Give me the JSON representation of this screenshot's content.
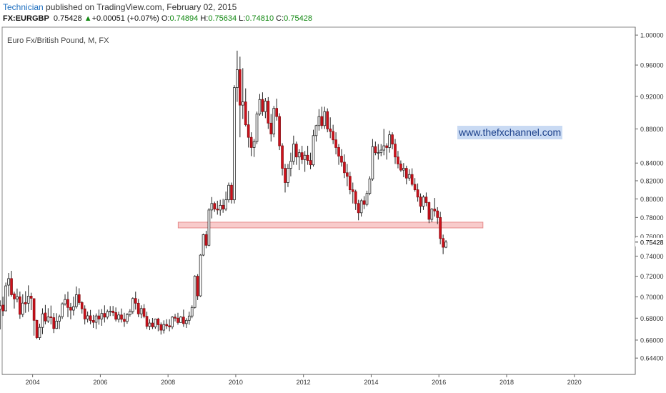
{
  "header": {
    "author": "Technician",
    "published_text": "published on TradingView.com, February 02, 2015",
    "symbol": "FX:EURGBP",
    "last": "0.75428",
    "change_arrow": "▲",
    "change": "+0.00051 (+0.07%)",
    "o_label": "O:",
    "o_value": "0.74894",
    "h_label": "H:",
    "h_value": "0.75634",
    "l_label": "L:",
    "l_value": "0.74810",
    "c_label": "C:",
    "c_value": "0.75428"
  },
  "watermark": "www.thefxchannel.com",
  "colors": {
    "up": "#ffffff",
    "down": "#d0111b",
    "wick": "#222222",
    "zone": "#f5b5b5",
    "watermark_bg": "#c9daf3"
  },
  "chart_data": {
    "type": "candlestick",
    "title": "Euro Fx/British Pound, M, FX",
    "scale": "log",
    "ylim": [
      0.636,
      1.005
    ],
    "xlim": [
      2003.1,
      2021.8
    ],
    "y_ticks": [
      1.0,
      0.96,
      0.92,
      0.88,
      0.84,
      0.82,
      0.8,
      0.78,
      0.76,
      0.74,
      0.72,
      0.7,
      0.68,
      0.66,
      0.644
    ],
    "y_tick_labels": [
      "1.00000",
      "0.96000",
      "0.92000",
      "0.88000",
      "0.84000",
      "0.82000",
      "0.80000",
      "0.78000",
      "0.76000",
      "0.74000",
      "0.72000",
      "0.70000",
      "0.68000",
      "0.66000",
      "0.64400"
    ],
    "x_ticks": [
      2004,
      2006,
      2008,
      2010,
      2012,
      2014,
      2016,
      2018,
      2020
    ],
    "x_tick_labels": [
      "2004",
      "2006",
      "2008",
      "2010",
      "2012",
      "2014",
      "2016",
      "2018",
      "2020"
    ],
    "last_price": 0.75428,
    "last_price_label": "0.75428",
    "support_zone": {
      "low": 0.769,
      "high": 0.775,
      "x_start": 2008.3,
      "x_end": 2017.3
    },
    "candles": [
      [
        0.6883,
        0.6967,
        0.6697,
        0.6916
      ],
      [
        0.6922,
        0.7002,
        0.6821,
        0.6868
      ],
      [
        0.6868,
        0.7138,
        0.6866,
        0.7106
      ],
      [
        0.7113,
        0.7232,
        0.7005,
        0.7177
      ],
      [
        0.7177,
        0.7253,
        0.7003,
        0.7021
      ],
      [
        0.7029,
        0.705,
        0.689,
        0.6981
      ],
      [
        0.6981,
        0.708,
        0.6948,
        0.7001
      ],
      [
        0.7001,
        0.7051,
        0.6794,
        0.6836
      ],
      [
        0.6836,
        0.7025,
        0.681,
        0.6941
      ],
      [
        0.6947,
        0.7055,
        0.685,
        0.6933
      ],
      [
        0.694,
        0.7111,
        0.6859,
        0.7007
      ],
      [
        0.7007,
        0.704,
        0.6875,
        0.6987
      ],
      [
        0.6983,
        0.6987,
        0.664,
        0.678
      ],
      [
        0.678,
        0.6785,
        0.661,
        0.6622
      ],
      [
        0.6622,
        0.6749,
        0.66,
        0.6715
      ],
      [
        0.6715,
        0.6892,
        0.6654,
        0.684
      ],
      [
        0.6848,
        0.6924,
        0.6743,
        0.6774
      ],
      [
        0.6774,
        0.6893,
        0.6756,
        0.6812
      ],
      [
        0.6812,
        0.6918,
        0.6743,
        0.6805
      ],
      [
        0.6805,
        0.6848,
        0.6663,
        0.6705
      ],
      [
        0.6705,
        0.6846,
        0.67,
        0.6773
      ],
      [
        0.6773,
        0.6832,
        0.67,
        0.6814
      ],
      [
        0.6814,
        0.6947,
        0.6793,
        0.6934
      ],
      [
        0.6934,
        0.7025,
        0.6918,
        0.6975
      ],
      [
        0.6975,
        0.705,
        0.681,
        0.69
      ],
      [
        0.69,
        0.6943,
        0.679,
        0.6875
      ],
      [
        0.6875,
        0.7002,
        0.6825,
        0.6908
      ],
      [
        0.6908,
        0.71,
        0.689,
        0.7021
      ],
      [
        0.7021,
        0.7083,
        0.6924,
        0.6946
      ],
      [
        0.6946,
        0.696,
        0.6843,
        0.6887
      ],
      [
        0.6887,
        0.692,
        0.6742,
        0.6793
      ],
      [
        0.6793,
        0.6862,
        0.676,
        0.6822
      ],
      [
        0.6822,
        0.6877,
        0.6744,
        0.6779
      ],
      [
        0.6779,
        0.683,
        0.671,
        0.6762
      ],
      [
        0.6762,
        0.6844,
        0.67,
        0.6821
      ],
      [
        0.6821,
        0.688,
        0.674,
        0.6792
      ],
      [
        0.6792,
        0.6885,
        0.673,
        0.6844
      ],
      [
        0.6844,
        0.692,
        0.676,
        0.681
      ],
      [
        0.681,
        0.688,
        0.679,
        0.6861
      ],
      [
        0.6861,
        0.6913,
        0.682,
        0.6866
      ],
      [
        0.6866,
        0.6914,
        0.682,
        0.6852
      ],
      [
        0.6852,
        0.69,
        0.677,
        0.679
      ],
      [
        0.679,
        0.686,
        0.676,
        0.683
      ],
      [
        0.683,
        0.689,
        0.676,
        0.679
      ],
      [
        0.679,
        0.685,
        0.672,
        0.677
      ],
      [
        0.677,
        0.6848,
        0.6748,
        0.6833
      ],
      [
        0.6833,
        0.6884,
        0.6814,
        0.6862
      ],
      [
        0.6862,
        0.6996,
        0.684,
        0.6985
      ],
      [
        0.6985,
        0.705,
        0.688,
        0.694
      ],
      [
        0.694,
        0.698,
        0.681,
        0.684
      ],
      [
        0.684,
        0.692,
        0.68,
        0.689
      ],
      [
        0.689,
        0.6931,
        0.68,
        0.6817
      ],
      [
        0.6817,
        0.686,
        0.67,
        0.6725
      ],
      [
        0.6725,
        0.679,
        0.669,
        0.6755
      ],
      [
        0.6755,
        0.6802,
        0.67,
        0.672
      ],
      [
        0.672,
        0.6796,
        0.6703,
        0.6792
      ],
      [
        0.6792,
        0.6803,
        0.668,
        0.674
      ],
      [
        0.674,
        0.676,
        0.665,
        0.669
      ],
      [
        0.669,
        0.678,
        0.666,
        0.6742
      ],
      [
        0.6742,
        0.679,
        0.67,
        0.673
      ],
      [
        0.673,
        0.679,
        0.668,
        0.672
      ],
      [
        0.672,
        0.682,
        0.67,
        0.681
      ],
      [
        0.681,
        0.684,
        0.677,
        0.68
      ],
      [
        0.68,
        0.685,
        0.674,
        0.676
      ],
      [
        0.676,
        0.682,
        0.676,
        0.681
      ],
      [
        0.681,
        0.688,
        0.672,
        0.675
      ],
      [
        0.675,
        0.68,
        0.671,
        0.678
      ],
      [
        0.678,
        0.686,
        0.674,
        0.682
      ],
      [
        0.682,
        0.692,
        0.68,
        0.69
      ],
      [
        0.69,
        0.721,
        0.689,
        0.72
      ],
      [
        0.72,
        0.722,
        0.697,
        0.701
      ],
      [
        0.701,
        0.742,
        0.7,
        0.741
      ],
      [
        0.741,
        0.763,
        0.74,
        0.762
      ],
      [
        0.762,
        0.766,
        0.748,
        0.751
      ],
      [
        0.751,
        0.79,
        0.75,
        0.788
      ],
      [
        0.788,
        0.802,
        0.779,
        0.795
      ],
      [
        0.795,
        0.797,
        0.786,
        0.789
      ],
      [
        0.789,
        0.798,
        0.783,
        0.788
      ],
      [
        0.788,
        0.799,
        0.782,
        0.793
      ],
      [
        0.793,
        0.8,
        0.785,
        0.789
      ],
      [
        0.789,
        0.808,
        0.787,
        0.799
      ],
      [
        0.799,
        0.818,
        0.796,
        0.815
      ],
      [
        0.815,
        0.818,
        0.795,
        0.799
      ],
      [
        0.799,
        0.934,
        0.795,
        0.931
      ],
      [
        0.931,
        0.979,
        0.913,
        0.954
      ],
      [
        0.954,
        0.971,
        0.87,
        0.909
      ],
      [
        0.909,
        0.956,
        0.892,
        0.913
      ],
      [
        0.913,
        0.93,
        0.883,
        0.885
      ],
      [
        0.885,
        0.902,
        0.858,
        0.87
      ],
      [
        0.87,
        0.876,
        0.848,
        0.858
      ],
      [
        0.858,
        0.868,
        0.847,
        0.865
      ],
      [
        0.865,
        0.901,
        0.862,
        0.898
      ],
      [
        0.898,
        0.923,
        0.896,
        0.916
      ],
      [
        0.916,
        0.925,
        0.896,
        0.901
      ],
      [
        0.901,
        0.918,
        0.893,
        0.914
      ],
      [
        0.914,
        0.919,
        0.88,
        0.887
      ],
      [
        0.887,
        0.898,
        0.865,
        0.874
      ],
      [
        0.874,
        0.908,
        0.87,
        0.905
      ],
      [
        0.905,
        0.917,
        0.89,
        0.895
      ],
      [
        0.895,
        0.899,
        0.855,
        0.86
      ],
      [
        0.86,
        0.863,
        0.826,
        0.834
      ],
      [
        0.834,
        0.839,
        0.807,
        0.818
      ],
      [
        0.818,
        0.839,
        0.813,
        0.834
      ],
      [
        0.834,
        0.852,
        0.825,
        0.842
      ],
      [
        0.842,
        0.872,
        0.838,
        0.862
      ],
      [
        0.862,
        0.865,
        0.838,
        0.847
      ],
      [
        0.847,
        0.856,
        0.832,
        0.852
      ],
      [
        0.852,
        0.86,
        0.839,
        0.844
      ],
      [
        0.844,
        0.854,
        0.83,
        0.849
      ],
      [
        0.849,
        0.86,
        0.838,
        0.843
      ],
      [
        0.843,
        0.852,
        0.833,
        0.838
      ],
      [
        0.838,
        0.879,
        0.836,
        0.872
      ],
      [
        0.872,
        0.885,
        0.865,
        0.884
      ],
      [
        0.884,
        0.904,
        0.878,
        0.895
      ],
      [
        0.895,
        0.907,
        0.88,
        0.884
      ],
      [
        0.884,
        0.907,
        0.88,
        0.901
      ],
      [
        0.901,
        0.905,
        0.876,
        0.88
      ],
      [
        0.88,
        0.894,
        0.869,
        0.877
      ],
      [
        0.877,
        0.885,
        0.862,
        0.867
      ],
      [
        0.867,
        0.876,
        0.85,
        0.858
      ],
      [
        0.858,
        0.862,
        0.838,
        0.848
      ],
      [
        0.848,
        0.856,
        0.836,
        0.841
      ],
      [
        0.841,
        0.85,
        0.823,
        0.829
      ],
      [
        0.829,
        0.839,
        0.814,
        0.825
      ],
      [
        0.825,
        0.83,
        0.805,
        0.81
      ],
      [
        0.81,
        0.818,
        0.795,
        0.808
      ],
      [
        0.808,
        0.81,
        0.788,
        0.795
      ],
      [
        0.795,
        0.799,
        0.777,
        0.785
      ],
      [
        0.785,
        0.8,
        0.781,
        0.798
      ],
      [
        0.798,
        0.803,
        0.789,
        0.794
      ],
      [
        0.794,
        0.809,
        0.792,
        0.806
      ],
      [
        0.806,
        0.825,
        0.804,
        0.822
      ],
      [
        0.822,
        0.868,
        0.82,
        0.859
      ],
      [
        0.859,
        0.865,
        0.849,
        0.852
      ],
      [
        0.852,
        0.862,
        0.844,
        0.852
      ],
      [
        0.852,
        0.862,
        0.848,
        0.855
      ],
      [
        0.855,
        0.88,
        0.849,
        0.86
      ],
      [
        0.86,
        0.863,
        0.844,
        0.858
      ],
      [
        0.858,
        0.878,
        0.852,
        0.873
      ],
      [
        0.873,
        0.876,
        0.856,
        0.862
      ],
      [
        0.862,
        0.868,
        0.839,
        0.847
      ],
      [
        0.847,
        0.854,
        0.834,
        0.839
      ],
      [
        0.839,
        0.843,
        0.83,
        0.832
      ],
      [
        0.832,
        0.84,
        0.824,
        0.834
      ],
      [
        0.834,
        0.837,
        0.816,
        0.823
      ],
      [
        0.823,
        0.833,
        0.82,
        0.827
      ],
      [
        0.827,
        0.834,
        0.814,
        0.816
      ],
      [
        0.816,
        0.823,
        0.808,
        0.81
      ],
      [
        0.81,
        0.817,
        0.797,
        0.802
      ],
      [
        0.802,
        0.806,
        0.785,
        0.792
      ],
      [
        0.792,
        0.804,
        0.788,
        0.802
      ],
      [
        0.802,
        0.807,
        0.792,
        0.796
      ],
      [
        0.796,
        0.797,
        0.774,
        0.778
      ],
      [
        0.778,
        0.79,
        0.775,
        0.789
      ],
      [
        0.789,
        0.801,
        0.781,
        0.787
      ],
      [
        0.787,
        0.791,
        0.773,
        0.78
      ],
      [
        0.78,
        0.786,
        0.752,
        0.758
      ],
      [
        0.758,
        0.762,
        0.742,
        0.749
      ],
      [
        0.749,
        0.7563,
        0.7481,
        0.7543
      ]
    ]
  }
}
